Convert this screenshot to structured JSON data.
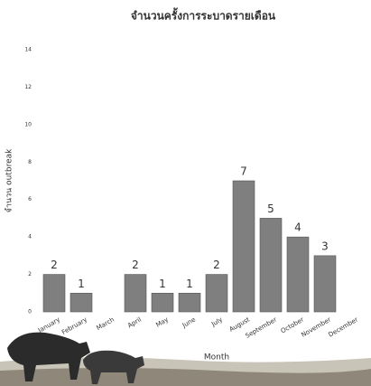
{
  "chart_data": {
    "type": "bar",
    "title": "จำนวนครั้งการระบาดรายเดือน",
    "x_label": "Month",
    "y_label": "จำนวน outbreak",
    "categories": [
      "January",
      "February",
      "March",
      "April",
      "May",
      "June",
      "July",
      "August",
      "September",
      "October",
      "November",
      "December"
    ],
    "values": [
      2,
      1,
      null,
      2,
      1,
      1,
      2,
      7,
      5,
      4,
      3,
      null
    ],
    "color": "#7f7f7f",
    "ylim": [
      0,
      14
    ],
    "yticks": [
      0,
      2,
      4,
      6,
      8,
      10,
      12,
      14
    ],
    "grid": false
  }
}
